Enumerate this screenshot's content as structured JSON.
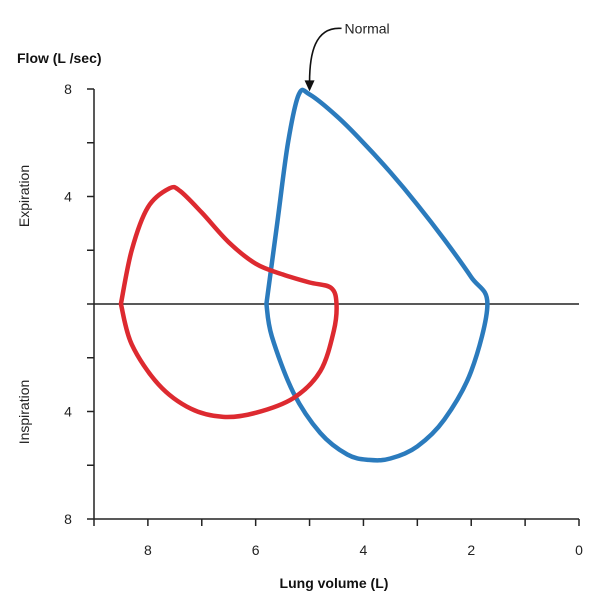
{
  "chart_data": {
    "type": "line",
    "title": "",
    "ylabel": "Flow (L /sec)",
    "xlabel": "Lung volume (L)",
    "x_reversed": true,
    "xlim": [
      9,
      0
    ],
    "ylim": [
      -8,
      8
    ],
    "x_ticks": [
      9,
      8,
      7,
      6,
      5,
      4,
      3,
      2,
      1,
      0
    ],
    "x_tick_labels": [
      {
        "value": 8,
        "label": "8"
      },
      {
        "value": 6,
        "label": "6"
      },
      {
        "value": 4,
        "label": "4"
      },
      {
        "value": 2,
        "label": "2"
      },
      {
        "value": 0,
        "label": "0"
      }
    ],
    "y_ticks": [
      8,
      6,
      4,
      2,
      0,
      -2,
      -4,
      -6,
      -8
    ],
    "y_tick_labels": [
      {
        "value": 8,
        "label": "8"
      },
      {
        "value": 4,
        "label": "4"
      },
      {
        "value": -4,
        "label": "4"
      },
      {
        "value": -8,
        "label": "8"
      }
    ],
    "upper_label": "Expiration",
    "lower_label": "Inspiration",
    "grid": false,
    "series": [
      {
        "name": "Normal",
        "color": "#2b7bbd",
        "points": [
          [
            5.8,
            0
          ],
          [
            5.6,
            3.0
          ],
          [
            5.4,
            6.0
          ],
          [
            5.2,
            7.8
          ],
          [
            5.0,
            7.8
          ],
          [
            4.5,
            7.0
          ],
          [
            4.0,
            6.0
          ],
          [
            3.5,
            4.9
          ],
          [
            3.0,
            3.7
          ],
          [
            2.5,
            2.4
          ],
          [
            2.0,
            1.0
          ],
          [
            1.7,
            0
          ],
          [
            2.0,
            -2.5
          ],
          [
            2.5,
            -4.3
          ],
          [
            3.0,
            -5.3
          ],
          [
            3.5,
            -5.75
          ],
          [
            3.9,
            -5.8
          ],
          [
            4.3,
            -5.6
          ],
          [
            4.8,
            -4.8
          ],
          [
            5.3,
            -3.3
          ],
          [
            5.7,
            -1.2
          ],
          [
            5.8,
            0
          ]
        ]
      },
      {
        "name": "",
        "color": "#dd2a30",
        "points": [
          [
            8.5,
            0
          ],
          [
            8.3,
            2.0
          ],
          [
            8.0,
            3.6
          ],
          [
            7.6,
            4.3
          ],
          [
            7.4,
            4.2
          ],
          [
            7.0,
            3.4
          ],
          [
            6.5,
            2.3
          ],
          [
            6.0,
            1.5
          ],
          [
            5.5,
            1.1
          ],
          [
            5.0,
            0.8
          ],
          [
            4.6,
            0.6
          ],
          [
            4.5,
            0
          ],
          [
            4.55,
            -1.0
          ],
          [
            4.8,
            -2.5
          ],
          [
            5.3,
            -3.5
          ],
          [
            6.0,
            -4.05
          ],
          [
            6.6,
            -4.2
          ],
          [
            7.2,
            -3.9
          ],
          [
            7.8,
            -3.0
          ],
          [
            8.3,
            -1.5
          ],
          [
            8.5,
            0
          ]
        ]
      }
    ],
    "annotation": {
      "text": "Normal",
      "target_x": 5.0,
      "target_y": 7.8
    }
  }
}
